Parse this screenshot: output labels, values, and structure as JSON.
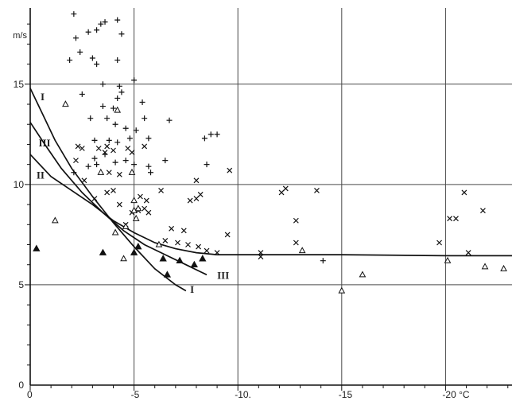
{
  "chart_data": {
    "type": "scatter",
    "title": "",
    "x_unit": "°C",
    "y_unit": "m/s",
    "xlim": [
      0,
      -23.2
    ],
    "ylim": [
      0,
      18.8
    ],
    "grid": true,
    "x_ticks": [
      {
        "value": 0,
        "label": "0"
      },
      {
        "value": -5,
        "label": "-5"
      },
      {
        "value": -10,
        "label": "-10."
      },
      {
        "value": -15,
        "label": "-15"
      },
      {
        "value": -20,
        "label": "-20 °C"
      }
    ],
    "y_ticks": [
      {
        "value": 0,
        "label": "0"
      },
      {
        "value": 5,
        "label": "5"
      },
      {
        "value": 10,
        "label": "10"
      },
      {
        "value": 15,
        "label": "15"
      }
    ],
    "y_unit_label": "m/s",
    "series": [
      {
        "marker": "plus",
        "points": [
          [
            -2.1,
            18.5
          ],
          [
            -2.2,
            17.3
          ],
          [
            -2.8,
            17.6
          ],
          [
            -3.2,
            17.7
          ],
          [
            -3.4,
            18.0
          ],
          [
            -3.6,
            18.1
          ],
          [
            -4.2,
            18.2
          ],
          [
            -4.4,
            17.5
          ],
          [
            -1.9,
            16.2
          ],
          [
            -2.4,
            16.6
          ],
          [
            -3.0,
            16.3
          ],
          [
            -3.2,
            16.0
          ],
          [
            -4.2,
            16.2
          ],
          [
            -3.5,
            15.0
          ],
          [
            -4.3,
            14.9
          ],
          [
            -5.0,
            15.2
          ],
          [
            -2.5,
            14.5
          ],
          [
            -4.2,
            14.3
          ],
          [
            -4.4,
            14.6
          ],
          [
            -5.4,
            14.1
          ],
          [
            -3.5,
            13.9
          ],
          [
            -4.0,
            13.8
          ],
          [
            -2.9,
            13.3
          ],
          [
            -3.7,
            13.3
          ],
          [
            -4.1,
            13.0
          ],
          [
            -4.6,
            12.8
          ],
          [
            -5.1,
            12.7
          ],
          [
            -5.5,
            13.3
          ],
          [
            -6.7,
            13.2
          ],
          [
            -3.1,
            12.2
          ],
          [
            -3.8,
            12.2
          ],
          [
            -4.2,
            12.1
          ],
          [
            -4.8,
            12.3
          ],
          [
            -5.7,
            12.3
          ],
          [
            -3.1,
            11.3
          ],
          [
            -3.2,
            11.0
          ],
          [
            -3.6,
            11.5
          ],
          [
            -2.8,
            10.9
          ],
          [
            -4.1,
            11.1
          ],
          [
            -4.6,
            11.2
          ],
          [
            -5.0,
            11.0
          ],
          [
            -5.7,
            10.9
          ],
          [
            -5.8,
            10.6
          ],
          [
            -6.5,
            11.2
          ],
          [
            -8.5,
            11.0
          ],
          [
            -2.1,
            10.6
          ],
          [
            -8.4,
            12.3
          ],
          [
            -8.7,
            12.5
          ],
          [
            -9.0,
            12.5
          ],
          [
            -14.1,
            6.2
          ]
        ]
      },
      {
        "marker": "cross",
        "points": [
          [
            -2.3,
            11.9
          ],
          [
            -2.5,
            11.8
          ],
          [
            -3.3,
            11.8
          ],
          [
            -3.7,
            11.9
          ],
          [
            -3.6,
            11.6
          ],
          [
            -4.0,
            11.7
          ],
          [
            -4.7,
            11.8
          ],
          [
            -4.9,
            11.6
          ],
          [
            -5.5,
            11.9
          ],
          [
            -3.8,
            10.6
          ],
          [
            -4.3,
            10.5
          ],
          [
            -2.6,
            10.2
          ],
          [
            -3.7,
            9.6
          ],
          [
            -4.0,
            9.7
          ],
          [
            -5.3,
            9.4
          ],
          [
            -5.6,
            9.2
          ],
          [
            -6.3,
            9.7
          ],
          [
            -3.1,
            9.3
          ],
          [
            -4.3,
            9.0
          ],
          [
            -4.9,
            8.6
          ],
          [
            -5.2,
            8.7
          ],
          [
            -5.5,
            8.8
          ],
          [
            -5.7,
            8.6
          ],
          [
            -4.6,
            8.0
          ],
          [
            -6.8,
            7.8
          ],
          [
            -7.4,
            7.7
          ],
          [
            -6.5,
            7.2
          ],
          [
            -7.1,
            7.1
          ],
          [
            -7.6,
            7.0
          ],
          [
            -8.1,
            6.9
          ],
          [
            -8.5,
            6.7
          ],
          [
            -9.0,
            6.6
          ],
          [
            -7.7,
            9.2
          ],
          [
            -8.0,
            9.3
          ],
          [
            -8.2,
            9.5
          ],
          [
            -8.0,
            10.2
          ],
          [
            -9.6,
            10.7
          ],
          [
            -9.5,
            7.5
          ],
          [
            -11.1,
            6.6
          ],
          [
            -11.1,
            6.4
          ],
          [
            -12.1,
            9.6
          ],
          [
            -12.3,
            9.8
          ],
          [
            -12.8,
            8.2
          ],
          [
            -12.8,
            7.1
          ],
          [
            -13.8,
            9.7
          ],
          [
            -19.7,
            7.1
          ],
          [
            -20.2,
            8.3
          ],
          [
            -20.5,
            8.3
          ],
          [
            -21.1,
            6.6
          ],
          [
            -21.8,
            8.7
          ],
          [
            -20.9,
            9.6
          ],
          [
            -2.2,
            11.2
          ]
        ]
      },
      {
        "marker": "triangle-open",
        "points": [
          [
            -1.7,
            14.0
          ],
          [
            -4.2,
            13.7
          ],
          [
            -4.9,
            10.6
          ],
          [
            -3.4,
            10.6
          ],
          [
            -1.2,
            8.2
          ],
          [
            -5.0,
            9.2
          ],
          [
            -5.2,
            8.8
          ],
          [
            -5.0,
            8.7
          ],
          [
            -5.1,
            8.3
          ],
          [
            -4.6,
            7.9
          ],
          [
            -4.1,
            7.6
          ],
          [
            -4.5,
            6.3
          ],
          [
            -6.2,
            7.0
          ],
          [
            -13.1,
            6.7
          ],
          [
            -15.0,
            4.7
          ],
          [
            -16.0,
            5.5
          ],
          [
            -20.1,
            6.2
          ],
          [
            -21.9,
            5.9
          ],
          [
            -22.8,
            5.8
          ]
        ]
      },
      {
        "marker": "triangle-filled",
        "points": [
          [
            -0.3,
            6.8
          ],
          [
            -3.5,
            6.6
          ],
          [
            -5.0,
            6.6
          ],
          [
            -5.2,
            6.9
          ],
          [
            -6.4,
            6.3
          ],
          [
            -7.2,
            6.2
          ],
          [
            -7.9,
            6.0
          ],
          [
            -8.3,
            6.3
          ],
          [
            -6.6,
            5.5
          ]
        ]
      }
    ],
    "curves": [
      {
        "name": "I",
        "points": [
          [
            0,
            14.8
          ],
          [
            -0.6,
            13.5
          ],
          [
            -1.2,
            12.2
          ],
          [
            -2.0,
            10.8
          ],
          [
            -3.0,
            9.4
          ],
          [
            -4.0,
            8.1
          ],
          [
            -5.0,
            6.9
          ],
          [
            -6.0,
            5.8
          ],
          [
            -7.0,
            5.0
          ],
          [
            -7.5,
            4.7
          ]
        ]
      },
      {
        "name": "II",
        "points": [
          [
            0,
            11.5
          ],
          [
            -1.0,
            10.4
          ],
          [
            -2.0,
            9.7
          ],
          [
            -3.0,
            9.0
          ],
          [
            -4.0,
            8.2
          ],
          [
            -5.0,
            7.6
          ],
          [
            -6.0,
            7.1
          ],
          [
            -7.0,
            6.8
          ],
          [
            -8.0,
            6.6
          ],
          [
            -9.0,
            6.5
          ],
          [
            -10.0,
            6.5
          ],
          [
            -15.0,
            6.5
          ],
          [
            -20.0,
            6.45
          ],
          [
            -23.2,
            6.45
          ]
        ]
      },
      {
        "name": "III",
        "points": [
          [
            0,
            13.1
          ],
          [
            -0.7,
            12.0
          ],
          [
            -1.5,
            10.8
          ],
          [
            -2.5,
            9.6
          ],
          [
            -3.5,
            8.6
          ],
          [
            -4.5,
            7.7
          ],
          [
            -5.5,
            7.0
          ],
          [
            -6.5,
            6.5
          ],
          [
            -7.5,
            6.0
          ],
          [
            -8.5,
            5.5
          ]
        ]
      }
    ],
    "curve_labels": [
      {
        "name": "I",
        "text": "I",
        "x": -0.5,
        "y": 14.2
      },
      {
        "name": "III",
        "text": "III",
        "x": -0.4,
        "y": 11.9
      },
      {
        "name": "II",
        "text": "II",
        "x": -0.3,
        "y": 10.3
      },
      {
        "name": "III-end",
        "text": "III",
        "x": -9.0,
        "y": 5.3
      },
      {
        "name": "I-end",
        "text": "I",
        "x": -7.7,
        "y": 4.6
      }
    ]
  }
}
